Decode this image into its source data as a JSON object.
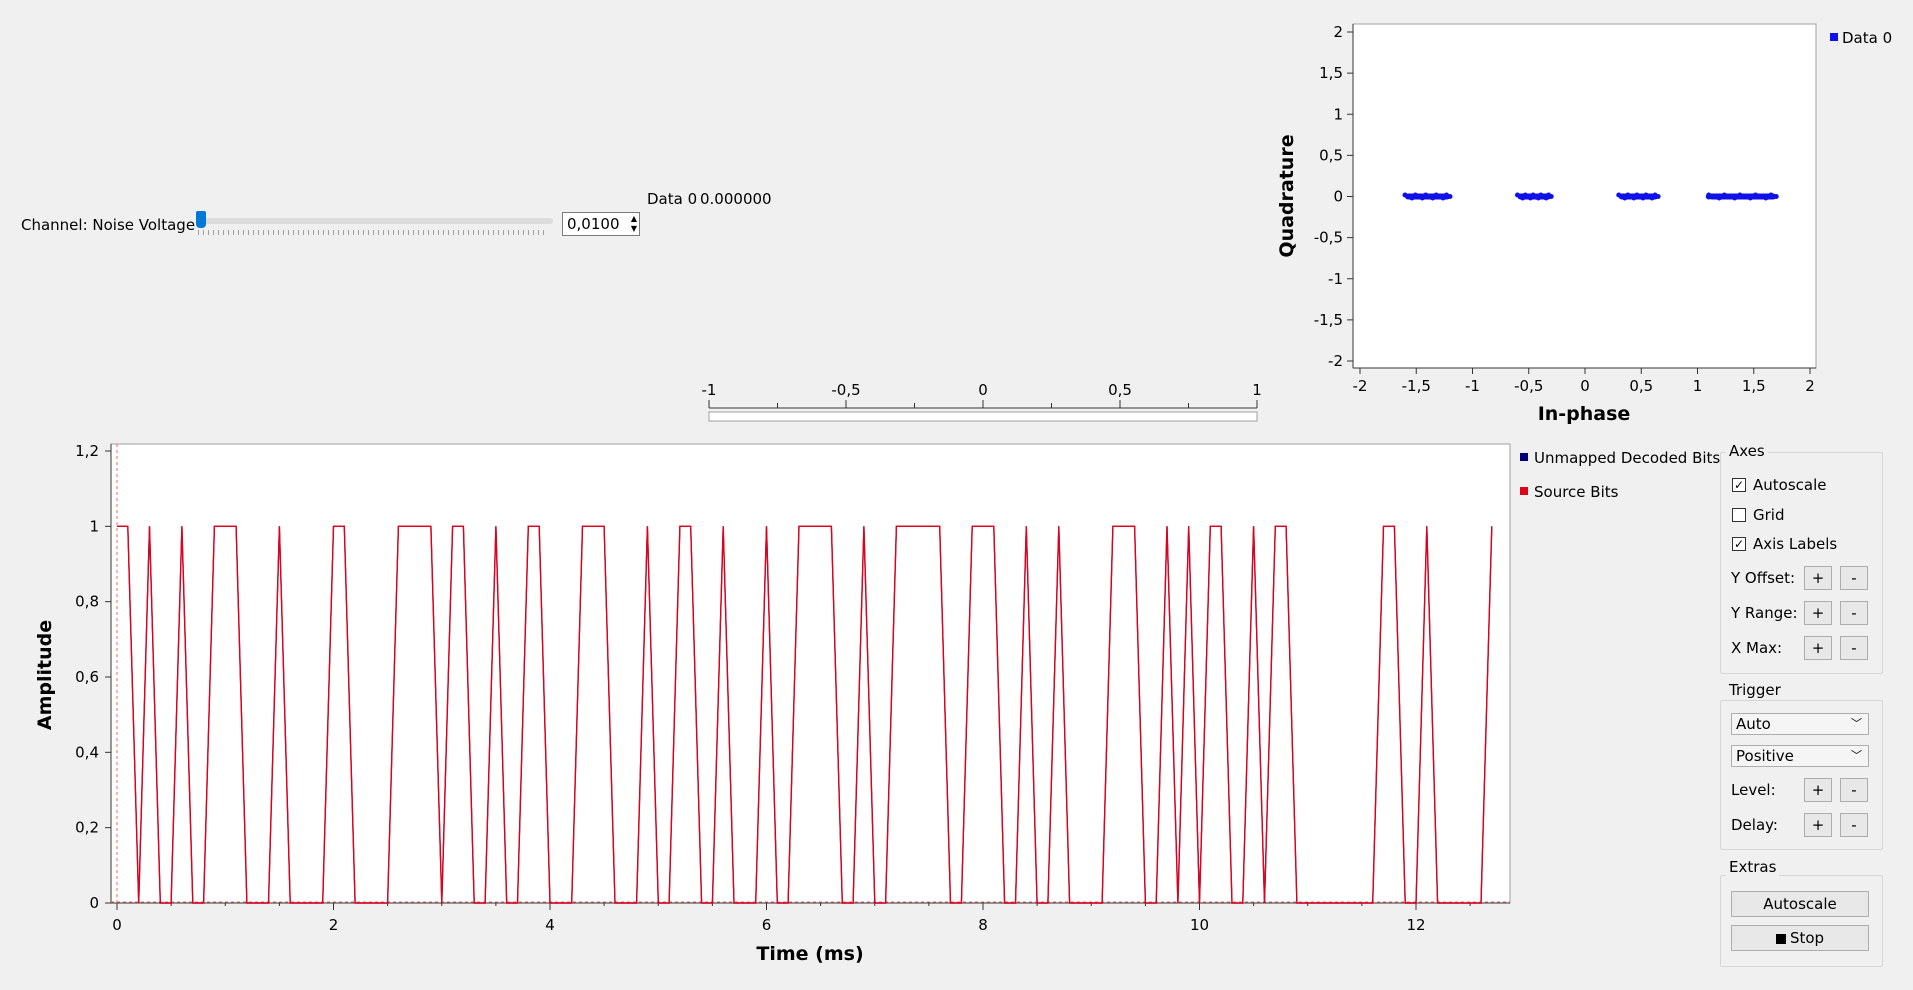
{
  "noise_control": {
    "label": "Channel: Noise Voltage",
    "value": "0,0100",
    "slider_fraction": 0.01
  },
  "number_display": {
    "label": "Data 0",
    "value": "0.000000",
    "ticks": [
      "-1",
      "-0,5",
      "0",
      "0,5",
      "1"
    ]
  },
  "constellation": {
    "legend": "Data 0",
    "xlabel": "In-phase",
    "ylabel": "Quadrature"
  },
  "time_plot": {
    "legend": [
      "Unmapped Decoded Bits",
      "Source Bits"
    ],
    "xlabel": "Time (ms)",
    "ylabel": "Amplitude"
  },
  "controls": {
    "axes": {
      "title": "Axes",
      "autoscale_label": "Autoscale",
      "autoscale_checked": true,
      "grid_label": "Grid",
      "grid_checked": false,
      "axis_labels_label": "Axis Labels",
      "axis_labels_checked": true,
      "y_offset_label": "Y Offset:",
      "y_range_label": "Y Range:",
      "x_max_label": "X Max:",
      "plus": "+",
      "minus": "-"
    },
    "trigger": {
      "title": "Trigger",
      "mode": "Auto",
      "slope": "Positive",
      "level_label": "Level:",
      "delay_label": "Delay:",
      "plus": "+",
      "minus": "-"
    },
    "extras": {
      "title": "Extras",
      "autoscale_button": "Autoscale",
      "stop_button": "Stop"
    }
  },
  "colors": {
    "constellation_points": "#1010e8",
    "decoded_series": "#00007f",
    "source_series": "#e0001a",
    "trigger_line": "#ff6060"
  },
  "chart_data": [
    {
      "type": "scatter",
      "name": "constellation",
      "legend": [
        "Data 0"
      ],
      "xlabel": "In-phase",
      "ylabel": "Quadrature",
      "xlim": [
        -2,
        2
      ],
      "ylim": [
        -2,
        2
      ],
      "x_ticks": [
        "-2",
        "-1,5",
        "-1",
        "-0,5",
        "0",
        "0,5",
        "1",
        "1,5",
        "2"
      ],
      "y_ticks": [
        "2",
        "1,5",
        "1",
        "0,5",
        "0",
        "-0,5",
        "-1",
        "-1,5",
        "-2"
      ],
      "clusters": [
        {
          "x_min": -1.6,
          "x_max": -1.2,
          "y": 0
        },
        {
          "x_min": -0.6,
          "x_max": -0.3,
          "y": 0
        },
        {
          "x_min": 0.3,
          "x_max": 0.65,
          "y": 0
        },
        {
          "x_min": 1.1,
          "x_max": 1.7,
          "y": 0
        }
      ],
      "grid": false
    },
    {
      "type": "line",
      "name": "time_plot",
      "xlabel": "Time (ms)",
      "ylabel": "Amplitude",
      "xlim": [
        0,
        12.9
      ],
      "ylim": [
        0,
        1.2
      ],
      "x_ticks": [
        "0",
        "2",
        "4",
        "6",
        "8",
        "10",
        "12"
      ],
      "y_ticks": [
        "1,2",
        "1",
        "0,8",
        "0,6",
        "0,4",
        "0,2",
        "0"
      ],
      "sample_period_ms": 0.1,
      "series": [
        {
          "name": "Unmapped Decoded Bits",
          "color": "#00007f"
        },
        {
          "name": "Source Bits",
          "color": "#e0001a"
        }
      ],
      "bits": [
        1,
        1,
        0,
        1,
        0,
        0,
        1,
        0,
        0,
        1,
        1,
        0,
        0,
        0,
        0,
        1,
        0,
        0,
        0,
        1,
        1,
        0,
        0,
        0,
        0,
        1,
        1,
        1,
        0,
        0,
        1,
        0,
        0,
        0,
        1,
        0,
        0,
        1,
        0,
        0,
        0,
        1,
        1,
        0,
        0,
        0,
        0,
        1,
        0,
        0,
        1,
        0,
        0,
        1,
        0,
        0,
        1,
        0,
        0,
        0,
        1,
        1,
        1,
        0,
        0,
        0,
        0,
        1,
        0,
        0,
        1,
        0,
        0,
        0,
        0,
        0,
        0,
        0,
        0,
        0,
        0,
        0,
        0,
        0,
        0,
        0,
        0,
        0,
        0,
        0,
        0,
        0,
        0,
        0,
        0,
        0,
        0,
        0,
        0,
        0,
        0,
        0,
        0,
        0,
        0,
        0,
        0,
        0,
        0,
        0,
        0,
        0,
        0,
        0,
        0,
        0,
        0,
        0,
        0,
        0,
        0,
        0,
        0,
        0,
        0,
        0,
        1
      ],
      "bits_note_skip": true,
      "grid": false
    }
  ]
}
